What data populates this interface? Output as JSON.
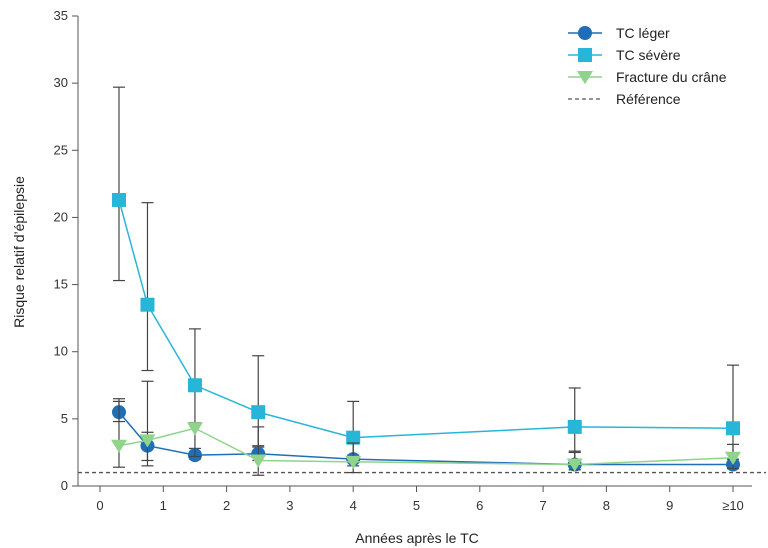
{
  "chart_data": {
    "type": "line",
    "xlabel": "Années après le TC",
    "ylabel": "Risque relatif d’épilepsie",
    "xlim": [
      -0.4,
      10.5
    ],
    "ylim": [
      0,
      35
    ],
    "x_ticks": [
      0,
      1,
      2,
      3,
      4,
      5,
      6,
      7,
      8,
      9,
      10
    ],
    "x_tick_labels": [
      "0",
      "1",
      "2",
      "3",
      "4",
      "5",
      "6",
      "7",
      "8",
      "9",
      "≥10"
    ],
    "y_ticks": [
      0,
      5,
      10,
      15,
      20,
      25,
      30,
      35
    ],
    "y_tick_labels": [
      "0",
      "5",
      "10",
      "15",
      "20",
      "25",
      "30",
      "35"
    ],
    "legend_position": "top-right",
    "reference_line": {
      "name": "Référence",
      "y": 1,
      "color": "#555555",
      "style": "dashed"
    },
    "series": [
      {
        "name": "TC léger",
        "color": "#1f6fb8",
        "marker": "circle",
        "x": [
          0.3,
          0.75,
          1.5,
          2.5,
          4,
          7.5,
          10
        ],
        "y": [
          5.5,
          3.0,
          2.3,
          2.4,
          2.0,
          1.6,
          1.6
        ],
        "err_low": [
          4.8,
          1.9,
          2.0,
          1.9,
          1.5,
          1.2,
          1.3
        ],
        "err_high": [
          6.5,
          4.0,
          2.8,
          2.9,
          2.3,
          2.6,
          2.0
        ]
      },
      {
        "name": "TC sévère",
        "color": "#28b6d8",
        "marker": "square",
        "x": [
          0.3,
          0.75,
          1.5,
          2.5,
          4,
          7.5,
          10
        ],
        "y": [
          21.3,
          13.5,
          7.5,
          5.5,
          3.6,
          4.4,
          4.3
        ],
        "err_low": [
          15.3,
          8.6,
          4.7,
          3.0,
          2.0,
          2.5,
          2.0
        ],
        "err_high": [
          29.7,
          21.1,
          11.7,
          9.7,
          6.3,
          7.3,
          9.0
        ]
      },
      {
        "name": "Fracture du crâne",
        "color": "#8fd48a",
        "marker": "triangle-down",
        "x": [
          0.3,
          0.75,
          1.5,
          2.5,
          4,
          7.5,
          10
        ],
        "y": [
          3.0,
          3.4,
          4.3,
          1.9,
          1.8,
          1.6,
          2.1
        ],
        "err_low": [
          1.4,
          1.5,
          2.2,
          0.8,
          1.0,
          1.2,
          1.3
        ],
        "err_high": [
          6.3,
          7.8,
          4.7,
          4.4,
          3.2,
          2.5,
          3.1
        ]
      }
    ]
  }
}
